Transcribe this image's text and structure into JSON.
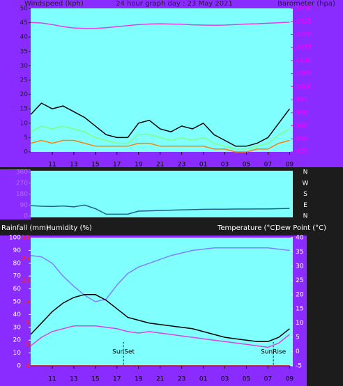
{
  "chart_data": [
    {
      "type": "line",
      "title": "24 hour graph day : 23 May 2021",
      "ylabel": "Windspeed (kph)",
      "x": [
        9,
        10,
        11,
        12,
        13,
        14,
        15,
        16,
        17,
        18,
        19,
        20,
        21,
        22,
        23,
        24,
        25,
        26,
        27,
        28,
        29,
        30,
        31,
        32,
        33
      ],
      "xlim": [
        9,
        33.3
      ],
      "xticks": [
        11,
        13,
        15,
        17,
        19,
        21,
        23,
        {
          "value": 25,
          "label": "01"
        },
        {
          "value": 27,
          "label": "03"
        },
        {
          "value": 29,
          "label": "05"
        },
        {
          "value": 31,
          "label": "07"
        },
        {
          "value": 33,
          "label": "09"
        }
      ],
      "ylim": [
        0,
        50
      ],
      "yticks": [
        0,
        5,
        10,
        15,
        20,
        25,
        30,
        35,
        40,
        45,
        50
      ],
      "y2lim": [
        975,
        1030
      ],
      "y2ticks": [
        975,
        980,
        985,
        990,
        995,
        1000,
        1005,
        1010,
        1015,
        1020,
        1025,
        1030
      ],
      "series": [
        {
          "color": "#000000",
          "values": [
            13,
            17,
            15,
            16,
            14,
            12,
            9,
            6,
            5,
            5,
            10,
            11,
            8,
            7,
            9,
            8,
            10,
            6,
            4,
            2,
            2,
            3,
            5,
            10,
            15
          ]
        },
        {
          "color": "#80ff80",
          "values": [
            7,
            9,
            8,
            9,
            8,
            7,
            5,
            4,
            3,
            3,
            6,
            6,
            5,
            4,
            5,
            4,
            5,
            3,
            2,
            1,
            1,
            2,
            3,
            6,
            8
          ]
        },
        {
          "color": "#ff8000",
          "values": [
            3,
            4,
            3,
            4,
            4,
            3,
            2,
            2,
            2,
            2,
            3,
            3,
            2,
            2,
            2,
            2,
            2,
            1,
            1,
            0,
            0,
            1,
            1,
            3,
            4
          ]
        },
        {
          "name": "Barometer (hpa)",
          "axis": "y2",
          "color": "#e040e0",
          "values": [
            1024.6,
            1024.4,
            1023.8,
            1023,
            1022.5,
            1022.3,
            1022.3,
            1022.6,
            1023,
            1023.4,
            1023.8,
            1024,
            1024.1,
            1024,
            1023.9,
            1023.7,
            1023.6,
            1023.5,
            1023.6,
            1023.8,
            1024,
            1024.1,
            1024.3,
            1024.5,
            1024.7
          ]
        }
      ]
    },
    {
      "type": "line",
      "x": [
        9,
        10,
        11,
        12,
        13,
        14,
        15,
        16,
        17,
        18,
        19,
        20,
        21,
        22,
        23,
        24,
        25,
        26,
        27,
        28,
        29,
        30,
        31,
        32,
        33
      ],
      "xlim": [
        9,
        33.3
      ],
      "ylim": [
        0,
        360
      ],
      "yticks": [
        0,
        90,
        180,
        270,
        360
      ],
      "compass_ticks": [
        {
          "value": 0,
          "label": "N"
        },
        {
          "value": 90,
          "label": "E"
        },
        {
          "value": 180,
          "label": "S"
        },
        {
          "value": 270,
          "label": "W"
        },
        {
          "value": 360,
          "label": "N"
        }
      ],
      "series": [
        {
          "color": "#1f5f8f",
          "values": [
            85,
            80,
            78,
            82,
            75,
            90,
            60,
            15,
            15,
            15,
            40,
            42,
            45,
            48,
            50,
            52,
            55,
            56,
            56,
            57,
            57,
            58,
            58,
            60,
            62
          ]
        }
      ]
    },
    {
      "type": "line",
      "x": [
        9,
        10,
        11,
        12,
        13,
        14,
        15,
        16,
        17,
        18,
        19,
        20,
        21,
        22,
        23,
        24,
        25,
        26,
        27,
        28,
        29,
        30,
        31,
        32,
        33
      ],
      "xlim": [
        9,
        33.3
      ],
      "xticks": [
        11,
        13,
        15,
        17,
        19,
        21,
        23,
        {
          "value": 25,
          "label": "01"
        },
        {
          "value": 27,
          "label": "03"
        },
        {
          "value": 29,
          "label": "05"
        },
        {
          "value": 31,
          "label": "07"
        },
        {
          "value": 33,
          "label": "09"
        }
      ],
      "ylim": [
        0,
        100
      ],
      "yticks": [
        0,
        10,
        20,
        30,
        40,
        50,
        60,
        70,
        80,
        90,
        100
      ],
      "y3lim": [
        0,
        30
      ],
      "y3ticks": [
        0,
        5,
        10,
        15,
        20,
        25,
        30
      ],
      "y2lim": [
        -5,
        40
      ],
      "y2ticks": [
        -5,
        0,
        5,
        10,
        15,
        20,
        25,
        30,
        35,
        40
      ],
      "series": [
        {
          "name": "Rainfall (mm)",
          "axis": "y3",
          "color": "#d00000",
          "values": [
            0,
            0,
            0,
            0,
            0,
            0,
            0,
            0,
            0,
            0,
            0,
            0,
            0,
            0,
            0,
            0,
            0,
            0,
            0,
            0,
            0,
            0,
            0,
            0,
            0
          ]
        },
        {
          "name": "Humidity (%)",
          "color": "#8080ff",
          "values": [
            86,
            85,
            80,
            70,
            62,
            55,
            50,
            52,
            63,
            72,
            77,
            80,
            83,
            86,
            88,
            90,
            91,
            92,
            92,
            92,
            92,
            92,
            92,
            91,
            90
          ]
        },
        {
          "name": "Temperature (°C)",
          "axis": "y2",
          "color": "#000000",
          "values": [
            6,
            10,
            14,
            17,
            19,
            20,
            20,
            18,
            15,
            12,
            11,
            10,
            9.5,
            9,
            8.5,
            8,
            7,
            6,
            5,
            4.5,
            4,
            3.5,
            3.5,
            5,
            8
          ]
        },
        {
          "name": "Dew Point (°C)",
          "axis": "y2",
          "color": "#e040e0",
          "values": [
            2,
            5,
            7,
            8,
            9,
            9,
            9,
            8.5,
            8,
            7,
            6.5,
            7,
            6.5,
            6,
            5.5,
            5,
            4.5,
            4,
            3.5,
            3,
            2.5,
            2,
            1.5,
            3,
            6
          ]
        }
      ],
      "annotations": [
        {
          "text": "SunSet",
          "x": 17.6
        },
        {
          "text": "SunRise",
          "x": 31.5
        }
      ]
    }
  ]
}
